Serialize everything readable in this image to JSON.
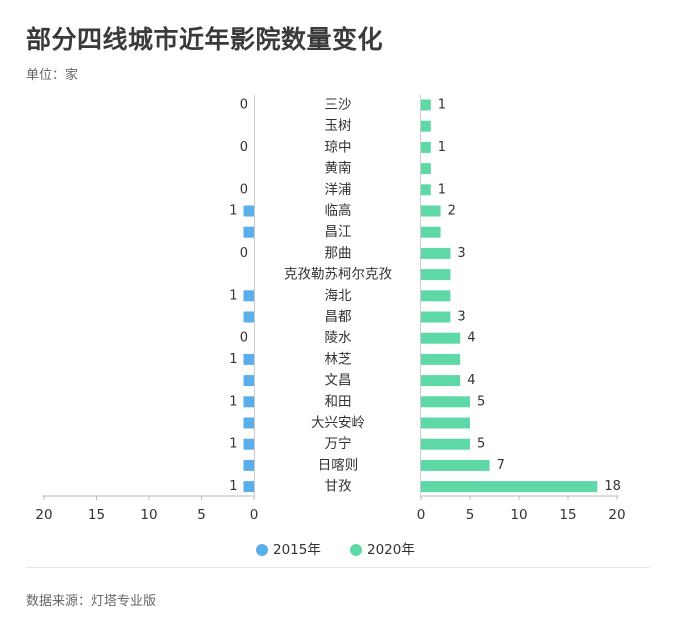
{
  "title": "部分四线城市近年影院数量变化",
  "subtitle": "单位：家",
  "source": "数据来源：灯塔专业版",
  "chart_data": {
    "type": "bar",
    "orientation": "horizontal-butterfly",
    "categories": [
      "三沙",
      "玉树",
      "琼中",
      "黄南",
      "洋浦",
      "临高",
      "昌江",
      "那曲",
      "克孜勒苏柯尔克孜",
      "海北",
      "昌都",
      "陵水",
      "林芝",
      "文昌",
      "和田",
      "大兴安岭",
      "万宁",
      "日喀则",
      "甘孜"
    ],
    "series": [
      {
        "name": "2015年",
        "color": "#5aaeea",
        "values": [
          0,
          null,
          0,
          null,
          0,
          1,
          1,
          0,
          null,
          1,
          1,
          0,
          1,
          1,
          1,
          1,
          1,
          1,
          1
        ],
        "labels": [
          "0",
          "",
          "0",
          "",
          "0",
          "1",
          "",
          "0",
          "",
          "1",
          "",
          "0",
          "1",
          "",
          "1",
          "",
          "1",
          "",
          "1"
        ]
      },
      {
        "name": "2020年",
        "color": "#5fd8a8",
        "values": [
          1,
          1,
          1,
          1,
          1,
          2,
          2,
          3,
          3,
          3,
          3,
          4,
          4,
          4,
          5,
          5,
          5,
          7,
          18
        ],
        "labels": [
          "1",
          "",
          "1",
          "",
          "1",
          "2",
          "",
          "3",
          "",
          "",
          "3",
          "4",
          "",
          "4",
          "5",
          "",
          "5",
          "7",
          "18"
        ]
      }
    ],
    "left_axis": {
      "range": [
        0,
        20
      ],
      "reversed": true,
      "ticks": [
        "20",
        "15",
        "10",
        "5",
        "0"
      ]
    },
    "right_axis": {
      "range": [
        0,
        20
      ],
      "ticks": [
        "0",
        "5",
        "10",
        "15",
        "20"
      ]
    },
    "legend": {
      "placement": "bottom",
      "items": [
        "2015年",
        "2020年"
      ]
    },
    "grid": false
  }
}
